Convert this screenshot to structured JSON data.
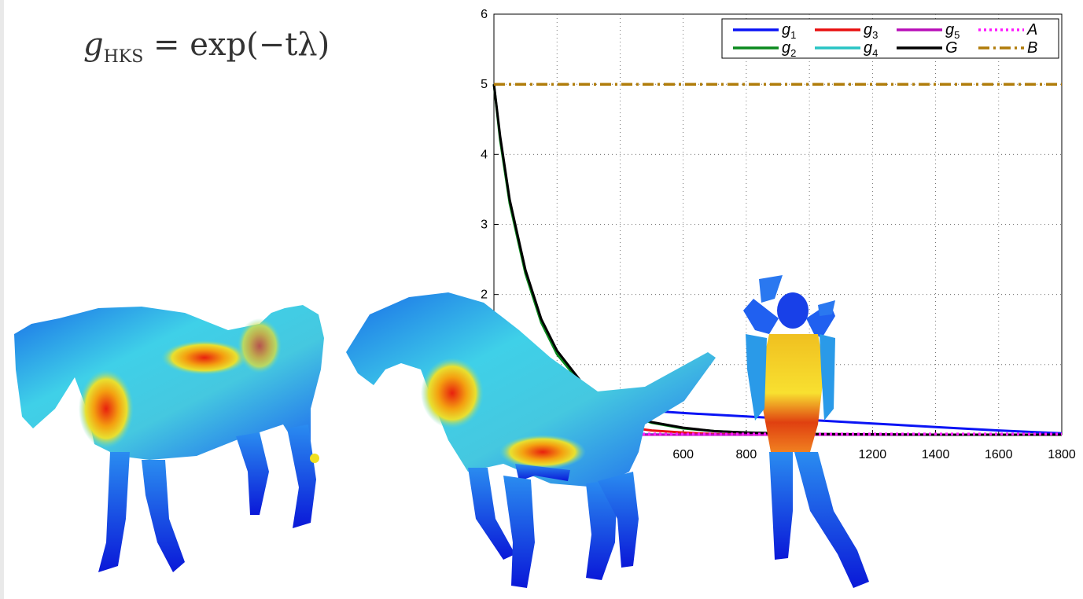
{
  "formula": {
    "lhs_symbol": "g",
    "lhs_subscript": "HKS",
    "rhs": "= exp(−tλ)"
  },
  "chart_data": {
    "type": "line",
    "title": "",
    "xlabel": "",
    "ylabel": "",
    "xlim": [
      0,
      1800
    ],
    "ylim": [
      0,
      6
    ],
    "x_ticks": [
      600,
      800,
      1200,
      1400,
      1600,
      1800
    ],
    "y_ticks": [
      2,
      3,
      4,
      5,
      6
    ],
    "grid": true,
    "legend_position": "top-right",
    "series": [
      {
        "name": "g1",
        "label_base": "g",
        "label_sub": "1",
        "color": "#0a14f5",
        "style": "solid",
        "x": [
          0,
          200,
          400,
          600,
          800,
          1000,
          1200,
          1400,
          1600,
          1800
        ],
        "y": [
          0.72,
          0.48,
          0.37,
          0.31,
          0.26,
          0.21,
          0.16,
          0.11,
          0.06,
          0.02
        ]
      },
      {
        "name": "g2",
        "label_base": "g",
        "label_sub": "2",
        "color": "#0b8a1e",
        "style": "solid",
        "x": [
          0,
          20,
          50,
          100,
          150,
          200,
          300,
          400,
          500,
          600,
          700,
          800,
          1000,
          1400,
          1800
        ],
        "y": [
          5.0,
          4.2,
          3.3,
          2.3,
          1.6,
          1.15,
          0.6,
          0.32,
          0.17,
          0.09,
          0.05,
          0.03,
          0.01,
          0.0,
          0.0
        ]
      },
      {
        "name": "g3",
        "label_base": "g",
        "label_sub": "3",
        "color": "#e81010",
        "style": "solid",
        "x": [
          0,
          200,
          400,
          500,
          600,
          700,
          800,
          1000,
          1400,
          1800
        ],
        "y": [
          0.55,
          0.3,
          0.12,
          0.06,
          0.03,
          0.01,
          0.0,
          0.0,
          0.0,
          0.0
        ]
      },
      {
        "name": "g4",
        "label_base": "g",
        "label_sub": "4",
        "color": "#28c4c4",
        "style": "solid",
        "x": [
          0,
          200,
          400,
          600,
          800,
          1800
        ],
        "y": [
          0.2,
          0.06,
          0.01,
          0.0,
          0.0,
          0.0
        ]
      },
      {
        "name": "g5",
        "label_base": "g",
        "label_sub": "5",
        "color": "#b80fb8",
        "style": "solid",
        "x": [
          0,
          200,
          400,
          600,
          800,
          1800
        ],
        "y": [
          0.1,
          0.02,
          0.0,
          0.0,
          0.0,
          0.0
        ]
      },
      {
        "name": "G",
        "label_base": "G",
        "label_sub": "",
        "color": "#000000",
        "style": "solid",
        "x": [
          0,
          20,
          50,
          100,
          150,
          200,
          300,
          400,
          500,
          600,
          700,
          800,
          1000,
          1400,
          1800
        ],
        "y": [
          5.0,
          4.25,
          3.35,
          2.35,
          1.65,
          1.2,
          0.62,
          0.33,
          0.18,
          0.1,
          0.05,
          0.03,
          0.01,
          0.0,
          0.0
        ]
      },
      {
        "name": "A",
        "label_base": "A",
        "label_sub": "",
        "color": "#ff19ff",
        "style": "dotted",
        "x": [
          0,
          1800
        ],
        "y": [
          0.01,
          0.01
        ]
      },
      {
        "name": "B",
        "label_base": "B",
        "label_sub": "",
        "color": "#b07c0a",
        "style": "dashdot",
        "x": [
          0,
          1800
        ],
        "y": [
          5.0,
          5.0
        ]
      }
    ]
  }
}
